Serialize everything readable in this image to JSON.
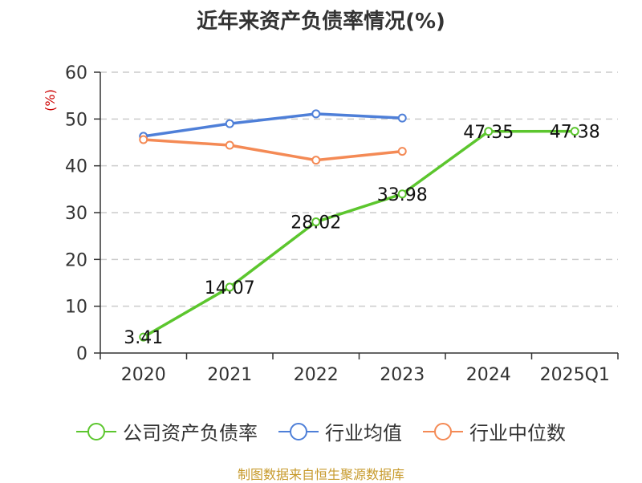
{
  "chart_data": {
    "type": "line",
    "title": "近年来资产负债率情况(%)",
    "ylabel": "(%)",
    "ylim": [
      0,
      60
    ],
    "yticks": [
      0,
      10,
      20,
      30,
      40,
      50,
      60
    ],
    "grid": true,
    "legend_position": "bottom",
    "categories": [
      "2020",
      "2021",
      "2022",
      "2023",
      "2024",
      "2025Q1"
    ],
    "series": [
      {
        "name": "公司资产负债率",
        "color": "#5cc62e",
        "values": [
          3.41,
          14.07,
          28.02,
          33.98,
          47.35,
          47.38
        ],
        "labels": [
          "3.41",
          "14.07",
          "28.02",
          "33.98",
          "47.35",
          "47.38"
        ]
      },
      {
        "name": "行业均值",
        "color": "#4e7fd8",
        "values": [
          46.3,
          49.0,
          51.1,
          50.2,
          null,
          null
        ]
      },
      {
        "name": "行业中位数",
        "color": "#f48a55",
        "values": [
          45.6,
          44.4,
          41.2,
          43.1,
          null,
          null
        ]
      }
    ]
  },
  "source_text": "制图数据来自恒生聚源数据库",
  "colors": {
    "title": "#333333",
    "ylabel": "#cc0000",
    "source": "#c79a2c",
    "grid": "#cccccc",
    "axis": "#333333"
  }
}
